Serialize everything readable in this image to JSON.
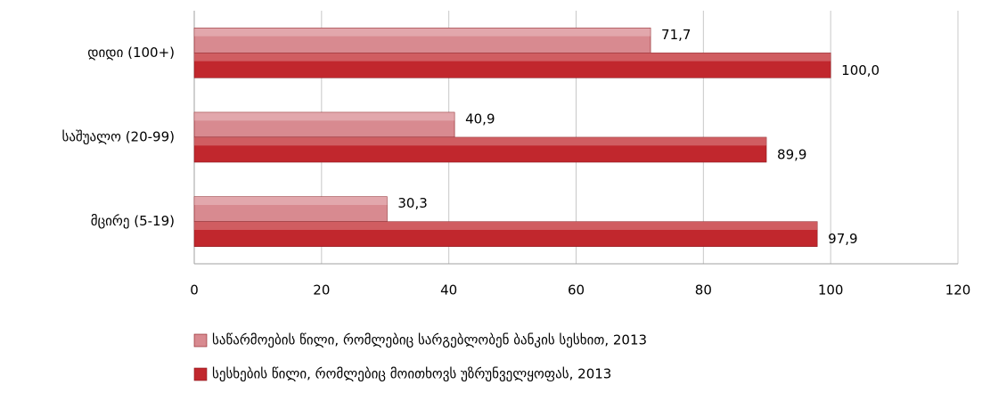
{
  "chart_data": {
    "type": "barh",
    "categories": [
      "დიდი (100+)",
      "საშუალო (20-99)",
      "მცირე (5-19)"
    ],
    "series": [
      {
        "name": "საწარმოების წილი, რომლებიც სარგებლობენ ბანკის სესხით, 2013",
        "color": "#d88a90",
        "values": [
          71.7,
          40.9,
          30.3
        ],
        "value_labels": [
          "71,7",
          "40,9",
          "30,3"
        ]
      },
      {
        "name": "სესხების წილი, რომლებიც მოითხოვს უზრუნველყოფას, 2013",
        "color": "#c1272d",
        "values": [
          100.0,
          89.9,
          97.9
        ],
        "value_labels": [
          "100,0",
          "89,9",
          "97,9"
        ]
      }
    ],
    "xlim": [
      0,
      120
    ],
    "xticks": [
      0,
      20,
      40,
      60,
      80,
      100,
      120
    ],
    "grid": true,
    "legend": "bottom"
  }
}
